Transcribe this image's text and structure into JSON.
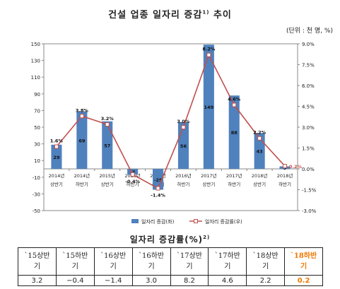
{
  "page": {
    "title_main": "건설 업종 일자리 증감",
    "title_sup": "1)",
    "title_tail": " 추이",
    "unit_note": "(단위 : 천 명, %)",
    "table_title_main": "일자리 증감률(%)",
    "table_title_sup": "2)"
  },
  "chart_data": {
    "type": "bar",
    "categories": [
      [
        "2014년",
        "상반기"
      ],
      [
        "2014년",
        "하반기"
      ],
      [
        "2015년",
        "상반기"
      ],
      [
        "2015년",
        "하반기"
      ],
      [
        "2016년",
        "상반기"
      ],
      [
        "2016년",
        "하반기"
      ],
      [
        "2017년",
        "상반기"
      ],
      [
        "2017년",
        "하반기"
      ],
      [
        "2018년",
        "상반기"
      ],
      [
        "2018년",
        "하반기"
      ]
    ],
    "series": [
      {
        "name": "일자리 증감(좌)",
        "type": "bar",
        "axis": "left",
        "color": "#4f81bd",
        "values": [
          29,
          69,
          57,
          -7,
          -25,
          56,
          149,
          88,
          43,
          3
        ],
        "labels": [
          "29",
          "69",
          "57",
          "-7",
          "-25",
          "56",
          "149",
          "88",
          "43",
          "3"
        ]
      },
      {
        "name": "일자리 증감률(우)",
        "type": "line",
        "axis": "right",
        "color": "#c0504d",
        "values": [
          1.6,
          3.8,
          3.2,
          -0.4,
          -1.4,
          3.0,
          8.2,
          4.6,
          2.2,
          0.2
        ],
        "labels": [
          "1.6%",
          "3.8%",
          "3.2%",
          "-0.4%",
          "-1.4%",
          "3.0%",
          "8.2%",
          "4.6%",
          "2.2%",
          "0.2%"
        ]
      }
    ],
    "y_left": {
      "range": [
        -50,
        150
      ],
      "ticks": [
        "-50",
        "-30",
        "-10",
        "10",
        "30",
        "50",
        "70",
        "90",
        "110",
        "130",
        "150"
      ]
    },
    "y_right": {
      "range": [
        -3.0,
        9.0
      ],
      "ticks": [
        "-3.0%",
        "-1.5%",
        "0.0%",
        "1.5%",
        "3.0%",
        "4.5%",
        "6.0%",
        "7.5%",
        "9.0%"
      ]
    },
    "grid": false,
    "legend_position": "bottom"
  },
  "table": {
    "headers": [
      [
        "`15상반",
        "기"
      ],
      [
        "`15하반",
        "기"
      ],
      [
        "`16상반",
        "기"
      ],
      [
        "`16하반",
        "기"
      ],
      [
        "`17상반",
        "기"
      ],
      [
        "`17하반",
        "기"
      ],
      [
        "`18상반",
        "기"
      ],
      [
        "`18하반",
        "기"
      ]
    ],
    "values": [
      "3.2",
      "−0.4",
      "−1.4",
      "3.0",
      "8.2",
      "4.6",
      "2.2",
      "0.2"
    ],
    "highlight_color": "#f07800"
  }
}
